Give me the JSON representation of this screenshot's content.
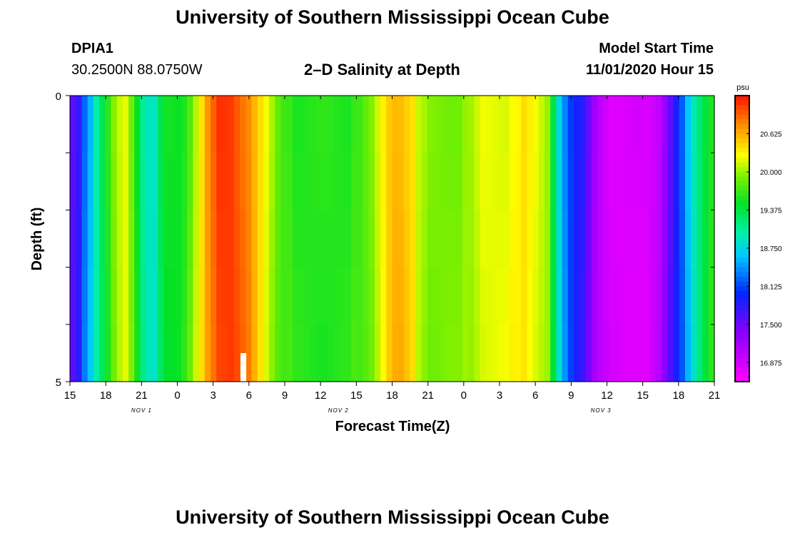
{
  "page": {
    "title_top": "University of Southern Mississippi Ocean Cube",
    "title_bottom": "University of Southern Mississippi Ocean Cube",
    "station_id": "DPIA1",
    "station_coords": "30.2500N 88.0750W",
    "plot_title": "2–D Salinity at Depth",
    "model_start_label": "Model Start Time",
    "model_start_value": "11/01/2020 Hour 15"
  },
  "chart_data": {
    "type": "heatmap",
    "title": "2–D Salinity at Depth",
    "xlabel": "Forecast Time(Z)",
    "ylabel": "Depth (ft)",
    "y_tick_labels": [
      "0",
      "5"
    ],
    "ylim": [
      0,
      5
    ],
    "x_tick_labels": [
      "15",
      "18",
      "21",
      "0",
      "3",
      "6",
      "9",
      "12",
      "15",
      "18",
      "21",
      "0",
      "3",
      "6",
      "9",
      "12",
      "15",
      "18",
      "21"
    ],
    "date_labels": [
      {
        "label": "NOV 1",
        "hour_offset": 6
      },
      {
        "label": "NOV 2",
        "hour_offset": 22.5
      },
      {
        "label": "NOV 3",
        "hour_offset": 44.5
      }
    ],
    "hours_span": 54,
    "depth_levels": 5,
    "colorbar": {
      "units": "psu",
      "tick_labels": [
        "20.625",
        "20.000",
        "19.375",
        "18.750",
        "18.125",
        "17.500",
        "16.875"
      ],
      "tick_values": [
        20.625,
        20.0,
        19.375,
        18.75,
        18.125,
        17.5,
        16.875
      ],
      "min": 16.5625,
      "max": 21.25
    },
    "salinity_columns_psu": [
      17.6,
      17.8,
      18.3,
      18.6,
      19.0,
      19.3,
      19.6,
      19.9,
      20.1,
      20.2,
      19.9,
      19.5,
      19.1,
      18.9,
      18.9,
      19.3,
      19.5,
      19.5,
      19.5,
      19.6,
      19.8,
      20.1,
      20.4,
      20.7,
      20.9,
      21.1,
      21.1,
      21.1,
      21.0,
      20.9,
      20.8,
      20.6,
      20.4,
      20.2,
      20.0,
      19.8,
      19.7,
      19.7,
      19.6,
      19.6,
      19.6,
      19.6,
      19.6,
      19.6,
      19.6,
      19.6,
      19.6,
      19.6,
      19.7,
      19.7,
      19.8,
      19.9,
      20.1,
      20.3,
      20.5,
      20.6,
      20.6,
      20.5,
      20.4,
      20.1,
      20.0,
      19.9,
      19.9,
      19.9,
      19.9,
      19.9,
      19.9,
      20.0,
      20.0,
      20.1,
      20.2,
      20.2,
      20.2,
      20.2,
      20.2,
      20.3,
      20.3,
      20.4,
      20.3,
      20.2,
      20.1,
      20.0,
      19.4,
      18.8,
      18.4,
      18.1,
      17.9,
      17.8,
      17.5,
      17.2,
      17.0,
      16.9,
      16.8,
      16.8,
      16.8,
      16.8,
      16.8,
      16.8,
      16.8,
      16.9,
      17.0,
      17.3,
      17.6,
      17.9,
      18.2,
      18.6,
      18.9,
      19.2,
      19.4,
      19.6
    ]
  }
}
